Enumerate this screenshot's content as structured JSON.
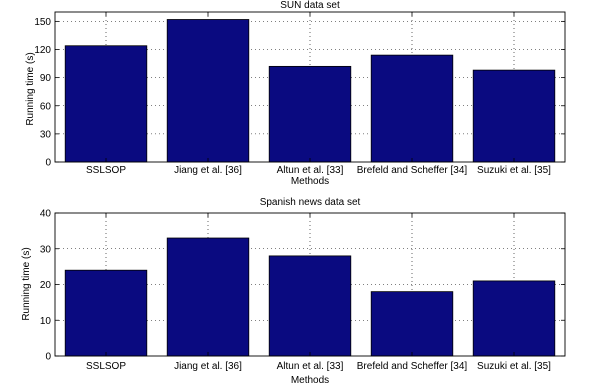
{
  "chart_data": [
    {
      "type": "bar",
      "title": "SUN data set",
      "xlabel": "Methods",
      "ylabel": "Running time (s)",
      "categories": [
        "SSLSOP",
        "Jiang et al. [36]",
        "Altun et al. [33]",
        "Brefeld and Scheffer [34]",
        "Suzuki et al. [35]"
      ],
      "values": [
        124,
        152,
        102,
        114,
        98
      ],
      "ylim": [
        0,
        160
      ],
      "yticks": [
        "0",
        "30",
        "60",
        "90",
        "120",
        "150"
      ],
      "grid": true,
      "bar_color": "#0a0a80"
    },
    {
      "type": "bar",
      "title": "Spanish news data set",
      "xlabel": "Methods",
      "ylabel": "Running time (s)",
      "categories": [
        "SSLSOP",
        "Jiang et al. [36]",
        "Altun et al. [33]",
        "Brefeld and Scheffer [34]",
        "Suzuki et al. [35]"
      ],
      "values": [
        24,
        33,
        28,
        18,
        21
      ],
      "ylim": [
        0,
        40
      ],
      "yticks": [
        "0",
        "10",
        "20",
        "30",
        "40"
      ],
      "grid": true,
      "bar_color": "#0a0a80"
    }
  ]
}
